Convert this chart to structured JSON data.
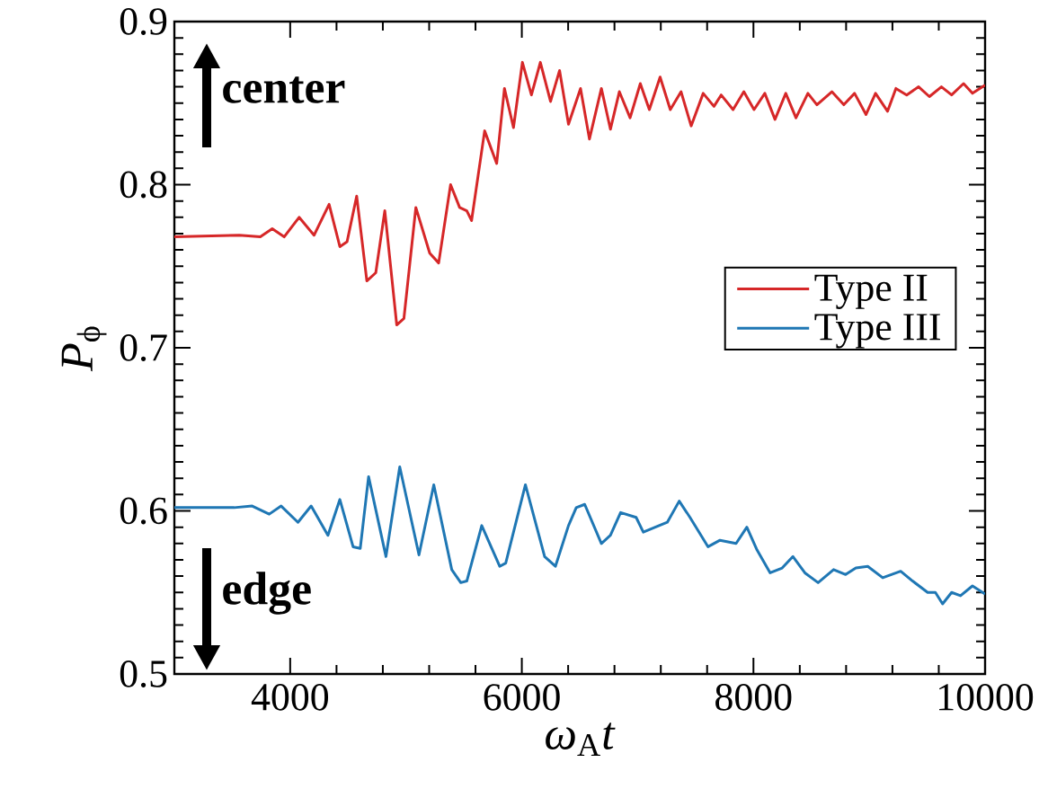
{
  "chart_data": {
    "type": "line",
    "xlabel": "*ω*$_{A}$*t*",
    "ylabel": "*P*$_{ϕ}$",
    "annotations": [
      "center",
      "edge"
    ],
    "xlim": [
      3000,
      10000
    ],
    "ylim": [
      0.5,
      0.9
    ],
    "xticks": [
      4000,
      6000,
      8000,
      10000
    ],
    "yticks": [
      0.5,
      0.6,
      0.7,
      0.8,
      0.9
    ],
    "legend": "right",
    "grid": false,
    "marker": "none",
    "line_style": "solid",
    "series": [
      {
        "name": "Type II",
        "color": "#d62728",
        "x": [
          3000,
          3561,
          3742,
          3845,
          3948,
          4077,
          4206,
          4336,
          4429,
          4491,
          4574,
          4662,
          4739,
          4817,
          4920,
          4982,
          5085,
          5205,
          5282,
          5385,
          5463,
          5525,
          5566,
          5679,
          5783,
          5850,
          5928,
          6005,
          6083,
          6160,
          6248,
          6326,
          6403,
          6507,
          6584,
          6687,
          6765,
          6842,
          6935,
          7023,
          7101,
          7194,
          7282,
          7375,
          7462,
          7566,
          7659,
          7721,
          7824,
          7917,
          8005,
          8098,
          8186,
          8279,
          8367,
          8470,
          8548,
          8677,
          8780,
          8873,
          8972,
          9054,
          9158,
          9230,
          9323,
          9426,
          9519,
          9623,
          9711,
          9814,
          9891,
          10000
        ],
        "values": [
          0.768,
          0.769,
          0.768,
          0.773,
          0.768,
          0.78,
          0.769,
          0.788,
          0.762,
          0.765,
          0.793,
          0.741,
          0.746,
          0.784,
          0.714,
          0.718,
          0.786,
          0.758,
          0.752,
          0.8,
          0.786,
          0.784,
          0.778,
          0.833,
          0.813,
          0.859,
          0.835,
          0.875,
          0.855,
          0.875,
          0.851,
          0.87,
          0.837,
          0.859,
          0.828,
          0.859,
          0.834,
          0.857,
          0.841,
          0.862,
          0.846,
          0.866,
          0.846,
          0.857,
          0.836,
          0.856,
          0.848,
          0.855,
          0.846,
          0.857,
          0.846,
          0.856,
          0.84,
          0.856,
          0.841,
          0.856,
          0.849,
          0.857,
          0.849,
          0.856,
          0.843,
          0.856,
          0.845,
          0.859,
          0.855,
          0.86,
          0.854,
          0.86,
          0.855,
          0.862,
          0.856,
          0.861
        ]
      },
      {
        "name": "Type III",
        "color": "#1f77b4",
        "x": [
          3000,
          3517,
          3672,
          3819,
          3922,
          4067,
          4181,
          4326,
          4429,
          4543,
          4605,
          4677,
          4827,
          4946,
          5112,
          5240,
          5395,
          5473,
          5525,
          5654,
          5809,
          5861,
          6031,
          6197,
          6290,
          6403,
          6470,
          6543,
          6687,
          6765,
          6853,
          6987,
          7049,
          7152,
          7256,
          7359,
          7452,
          7608,
          7711,
          7850,
          7943,
          8031,
          8144,
          8248,
          8341,
          8444,
          8558,
          8692,
          8796,
          8884,
          8987,
          9116,
          9271,
          9374,
          9504,
          9571,
          9633,
          9711,
          9788,
          9891,
          10000
        ],
        "values": [
          0.602,
          0.602,
          0.603,
          0.598,
          0.603,
          0.593,
          0.603,
          0.585,
          0.607,
          0.578,
          0.577,
          0.621,
          0.572,
          0.627,
          0.573,
          0.616,
          0.564,
          0.556,
          0.557,
          0.591,
          0.566,
          0.568,
          0.616,
          0.572,
          0.566,
          0.591,
          0.602,
          0.604,
          0.58,
          0.585,
          0.599,
          0.596,
          0.587,
          0.59,
          0.593,
          0.606,
          0.596,
          0.578,
          0.582,
          0.58,
          0.59,
          0.576,
          0.562,
          0.565,
          0.572,
          0.562,
          0.556,
          0.564,
          0.561,
          0.565,
          0.566,
          0.559,
          0.563,
          0.557,
          0.55,
          0.55,
          0.543,
          0.55,
          0.548,
          0.554,
          0.549
        ]
      }
    ]
  }
}
